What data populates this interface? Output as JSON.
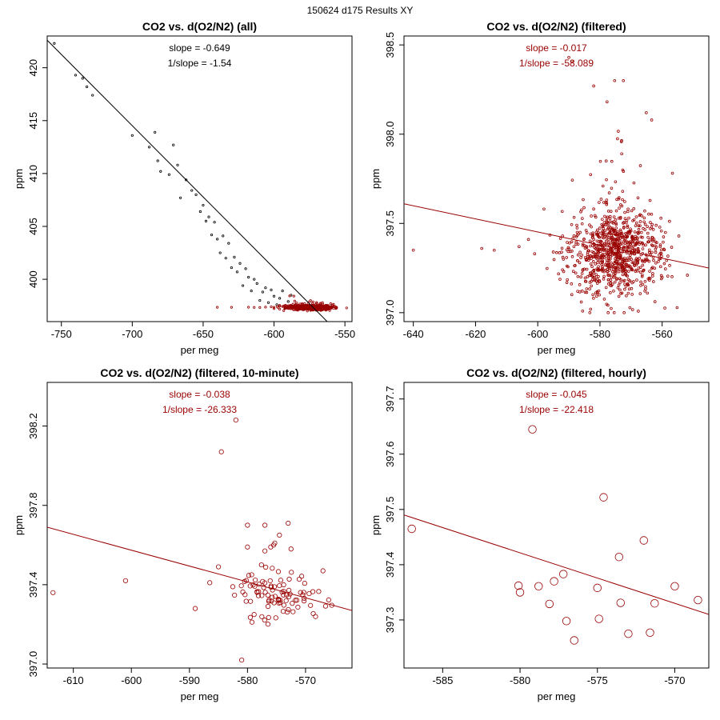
{
  "figure": {
    "title": "150624   d175   Results XY"
  },
  "chart_data": [
    {
      "type": "scatter",
      "title": "CO2 vs. d(O2/N2) (all)",
      "xlabel": "per meg",
      "ylabel": "ppm",
      "xlim": [
        -760,
        -545
      ],
      "ylim": [
        396,
        423
      ],
      "xticks": [
        -750,
        -700,
        -650,
        -600,
        -550
      ],
      "yticks": [
        400,
        405,
        410,
        415,
        420
      ],
      "annotations": [
        "slope = -0.649",
        "1/slope = -1.54"
      ],
      "line": {
        "color": "#000000",
        "points": [
          [
            -760,
            422.6
          ],
          [
            -561,
            395.8
          ]
        ]
      },
      "series": [
        {
          "name": "all",
          "color": "#000000",
          "marker_r": 1.2,
          "x": [
            -755,
            -740,
            -735,
            -732,
            -728,
            -700,
            -688,
            -684,
            -682,
            -680,
            -674,
            -671,
            -668,
            -666,
            -662,
            -658,
            -655,
            -652,
            -650,
            -648,
            -646,
            -644,
            -642,
            -640,
            -638,
            -636,
            -634,
            -632,
            -630,
            -628,
            -626,
            -624,
            -622,
            -620,
            -618,
            -616,
            -614,
            -612,
            -610,
            -608,
            -606,
            -604,
            -602,
            -600,
            -598,
            -596,
            -594,
            -592,
            -590,
            -588,
            -586
          ],
          "y": [
            422.3,
            419.3,
            419.0,
            418.2,
            417.4,
            413.6,
            412.5,
            413.9,
            411.2,
            410.2,
            409.9,
            412.7,
            410.8,
            407.7,
            409.4,
            408.4,
            408.0,
            406.4,
            407.0,
            405.5,
            405.9,
            404.2,
            405.4,
            403.8,
            402.5,
            404.1,
            402.0,
            403.4,
            401.1,
            402.1,
            400.7,
            401.5,
            399.4,
            401.0,
            400.2,
            398.9,
            400.0,
            399.6,
            398.0,
            398.8,
            399.2,
            397.8,
            399.0,
            398.4,
            397.6,
            398.2,
            398.9,
            397.3,
            397.9,
            398.5,
            397.5
          ]
        },
        {
          "name": "filtered",
          "color": "#990000",
          "marker_r": 1.2,
          "generate": true,
          "count": 600,
          "x": [
            -640,
            -630,
            -618,
            -614,
            -610,
            -606,
            -602,
            -600,
            -597,
            -594,
            -592,
            -590,
            -589,
            -586
          ],
          "y": [
            397.35,
            397.35,
            397.36,
            397.34,
            397.33,
            397.37,
            397.4,
            397.35,
            397.3,
            397.43,
            397.41,
            397.4,
            398.43,
            398.41
          ],
          "cluster": {
            "x_mean": -575,
            "x_sd": 8,
            "x_min": -600,
            "x_max": -547,
            "y_mean": 397.33,
            "y_sd": 0.13,
            "y_min": 397.0,
            "y_max": 398.3
          }
        }
      ]
    },
    {
      "type": "scatter",
      "title": "CO2 vs. d(O2/N2) (filtered)",
      "xlabel": "per meg",
      "ylabel": "ppm",
      "xlim": [
        -643,
        -545
      ],
      "ylim": [
        396.95,
        398.55
      ],
      "xticks": [
        -640,
        -620,
        -600,
        -580,
        -560
      ],
      "yticks": [
        397.0,
        397.5,
        398.0,
        398.5
      ],
      "ytick_labels": [
        "397.0",
        "397.5",
        "398.0",
        "398.5"
      ],
      "annotations": [
        "slope = -0.017",
        "1/slope = -58.089"
      ],
      "line": {
        "color": "#990000",
        "points": [
          [
            -643,
            397.61
          ],
          [
            -545,
            397.25
          ]
        ]
      },
      "series": [
        {
          "name": "filtered",
          "color": "#990000",
          "marker_r": 1.4,
          "generate": true,
          "count": 900,
          "x": [
            -640,
            -618,
            -614,
            -606,
            -603,
            -601,
            -595,
            -592,
            -590,
            -589,
            -586,
            -583,
            -582,
            -578,
            -573
          ],
          "y": [
            397.35,
            397.36,
            397.35,
            397.37,
            397.41,
            397.33,
            397.34,
            397.43,
            398.43,
            398.41,
            397.06,
            397.02,
            398.27,
            397.85,
            397.89
          ],
          "cluster": {
            "x_mean": -575,
            "x_sd": 7,
            "x_min": -598,
            "x_max": -547,
            "y_mean": 397.33,
            "y_sd": 0.14,
            "y_min": 397.0,
            "y_max": 398.3
          }
        }
      ]
    },
    {
      "type": "scatter",
      "title": "CO2 vs. d(O2/N2) (filtered, 10-minute)",
      "xlabel": "per meg",
      "ylabel": "ppm",
      "xlim": [
        -614.5,
        -562
      ],
      "ylim": [
        396.98,
        398.42
      ],
      "xticks": [
        -610,
        -600,
        -590,
        -580,
        -570
      ],
      "yticks": [
        397.0,
        397.4,
        397.8,
        398.2
      ],
      "ytick_labels": [
        "397.0",
        "397.4",
        "397.8",
        "398.2"
      ],
      "annotations": [
        "slope = -0.038",
        "1/slope = -26.333"
      ],
      "line": {
        "color": "#990000",
        "points": [
          [
            -614.5,
            397.69
          ],
          [
            -562,
            397.27
          ]
        ]
      },
      "series": [
        {
          "name": "10-minute",
          "color": "#990000",
          "marker_r": 2.7,
          "generate": true,
          "count": 95,
          "x": [
            -613.5,
            -601,
            -589,
            -586.5,
            -585,
            -584.5,
            -582,
            -581,
            -580,
            -580,
            -577,
            -576,
            -575.5,
            -575.3,
            -574.5,
            -572.5,
            -567,
            -573,
            -577
          ],
          "y": [
            397.36,
            397.42,
            397.28,
            397.41,
            397.49,
            398.07,
            398.23,
            397.02,
            397.7,
            397.59,
            397.7,
            397.59,
            397.6,
            397.61,
            397.65,
            397.58,
            397.47,
            397.71,
            397.57
          ],
          "cluster": {
            "x_mean": -575,
            "x_sd": 4,
            "x_min": -583,
            "x_max": -564,
            "y_mean": 397.34,
            "y_sd": 0.07,
            "y_min": 397.18,
            "y_max": 397.5
          }
        }
      ]
    },
    {
      "type": "scatter",
      "title": "CO2 vs. d(O2/N2) (filtered, hourly)",
      "xlabel": "per meg",
      "ylabel": "ppm",
      "xlim": [
        -587.5,
        -567.8
      ],
      "ylim": [
        397.213,
        397.73
      ],
      "xticks": [
        -585,
        -580,
        -575,
        -570
      ],
      "yticks": [
        397.3,
        397.4,
        397.5,
        397.6,
        397.7
      ],
      "ytick_labels": [
        "397.3",
        "397.4",
        "397.5",
        "397.6",
        "397.7"
      ],
      "annotations": [
        "slope = -0.045",
        "1/slope = -22.418"
      ],
      "line": {
        "color": "#990000",
        "points": [
          [
            -587.5,
            397.49
          ],
          [
            -567.8,
            397.31
          ]
        ]
      },
      "series": [
        {
          "name": "hourly",
          "color": "#990000",
          "marker_r": 4.8,
          "x": [
            -587,
            -580.1,
            -580.0,
            -579.2,
            -578.8,
            -578.1,
            -577.8,
            -577.2,
            -577.0,
            -576.5,
            -575.0,
            -574.9,
            -574.6,
            -573.6,
            -573.5,
            -573.0,
            -572.0,
            -571.6,
            -571.3,
            -570.0,
            -568.5
          ],
          "y": [
            397.465,
            397.362,
            397.35,
            397.645,
            397.361,
            397.329,
            397.37,
            397.383,
            397.298,
            397.263,
            397.358,
            397.302,
            397.522,
            397.414,
            397.331,
            397.275,
            397.444,
            397.277,
            397.33,
            397.361,
            397.336
          ]
        }
      ]
    }
  ]
}
